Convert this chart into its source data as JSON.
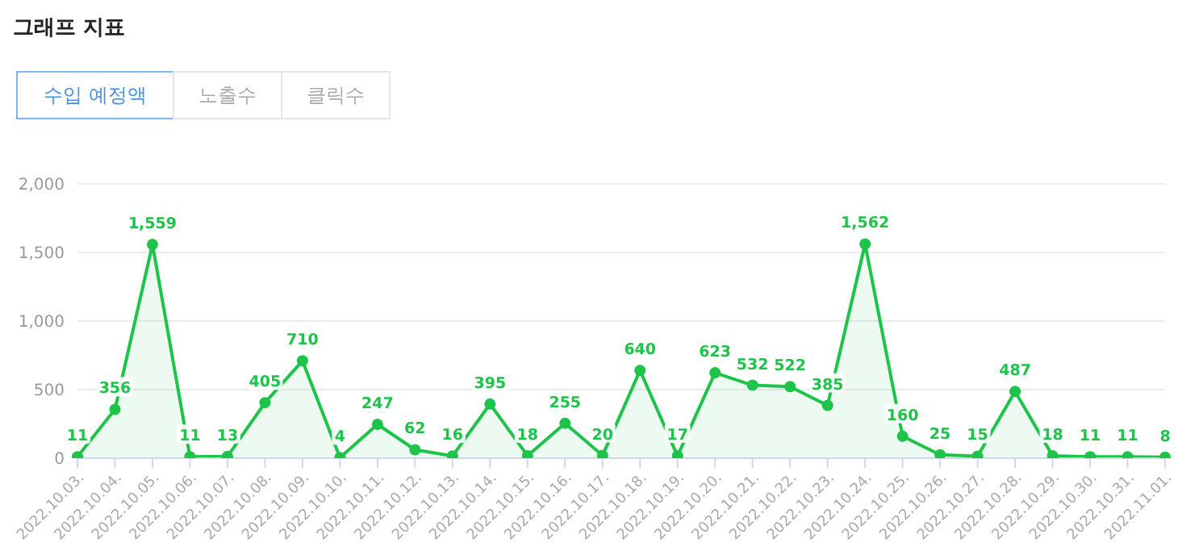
{
  "chart_data": {
    "type": "area",
    "title": "그래프 지표",
    "annotations": [
      "수입 예정액",
      "노출수",
      "클릭수"
    ],
    "categories": [
      "2022.10.03.",
      "2022.10.04.",
      "2022.10.05.",
      "2022.10.06.",
      "2022.10.07.",
      "2022.10.08.",
      "2022.10.09.",
      "2022.10.10.",
      "2022.10.11.",
      "2022.10.12.",
      "2022.10.13.",
      "2022.10.14.",
      "2022.10.15.",
      "2022.10.16.",
      "2022.10.17.",
      "2022.10.18.",
      "2022.10.19.",
      "2022.10.20.",
      "2022.10.21.",
      "2022.10.22.",
      "2022.10.23.",
      "2022.10.24.",
      "2022.10.25.",
      "2022.10.26.",
      "2022.10.27.",
      "2022.10.28.",
      "2022.10.29.",
      "2022.10.30.",
      "2022.10.31.",
      "2022.11.01."
    ],
    "series": [
      {
        "color": "#1ec44a",
        "values": [
          11,
          356,
          1559,
          11,
          13,
          405,
          710,
          4,
          247,
          62,
          16,
          395,
          18,
          255,
          20,
          640,
          17,
          623,
          532,
          522,
          385,
          1562,
          160,
          25,
          15,
          487,
          18,
          11,
          11,
          8
        ],
        "value_labels": [
          "11",
          "356",
          "1,559",
          "11",
          "13",
          "405",
          "710",
          "4",
          "247",
          "62",
          "16",
          "395",
          "18",
          "255",
          "20",
          "640",
          "17",
          "623",
          "532",
          "522",
          "385",
          "1,562",
          "160",
          "25",
          "15",
          "487",
          "18",
          "11",
          "11",
          "8"
        ]
      }
    ],
    "ylim": [
      0,
      2000
    ],
    "yticks": [
      0,
      {
        "value": 500,
        "label": "500"
      },
      {
        "value": 1000,
        "label": "1,000"
      },
      {
        "value": 1500,
        "label": "1,500"
      },
      {
        "value": 2000,
        "label": "2,000"
      }
    ],
    "grid": "y",
    "marker": "circle",
    "legend": false
  }
}
